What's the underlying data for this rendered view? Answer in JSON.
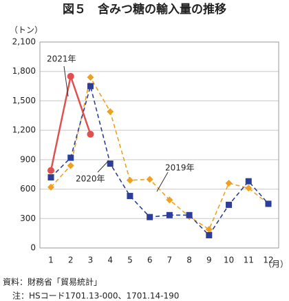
{
  "chart_data": {
    "type": "line",
    "title": "図５　含みつ糖の輸入量の推移",
    "y_unit": "（トン）",
    "x_unit": "（月）",
    "categories": [
      "1",
      "2",
      "3",
      "4",
      "5",
      "6",
      "7",
      "8",
      "9",
      "10",
      "11",
      "12"
    ],
    "series": [
      {
        "name": "2019年",
        "color": "#f0a020",
        "marker": "diamond",
        "line_style": "dashed",
        "values": [
          620,
          840,
          1740,
          1390,
          690,
          700,
          490,
          320,
          190,
          660,
          610,
          450
        ]
      },
      {
        "name": "2020年",
        "color": "#2c3e9a",
        "marker": "square",
        "line_style": "dashed",
        "values": [
          720,
          920,
          1650,
          860,
          530,
          315,
          335,
          335,
          130,
          440,
          680,
          450
        ]
      },
      {
        "name": "2021年",
        "color": "#e05050",
        "marker": "circle",
        "line_style": "solid",
        "values": [
          790,
          1750,
          1160,
          null,
          null,
          null,
          null,
          null,
          null,
          null,
          null,
          null
        ]
      }
    ],
    "ylim": [
      0,
      2100
    ],
    "yticks": [
      0,
      300,
      600,
      900,
      {
        "value": 1200,
        "label": "1,200"
      },
      {
        "value": 1500,
        "label": "1,500"
      },
      {
        "value": 1800,
        "label": "1,800"
      },
      {
        "value": 2100,
        "label": "2,100"
      }
    ],
    "grid": true,
    "source": "資料：財務省「貿易統計」",
    "note": "注：HSコード1701.13-000、1701.14-190"
  }
}
